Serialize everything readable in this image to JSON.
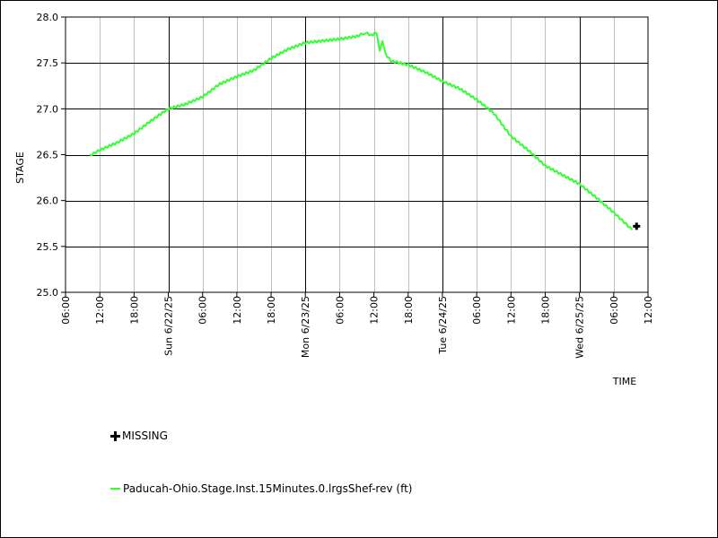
{
  "chart_data": {
    "type": "line",
    "title": "",
    "xlabel": "TIME",
    "ylabel": "STAGE",
    "ylim": [
      25.0,
      28.0
    ],
    "yticks": [
      25.0,
      25.5,
      26.0,
      26.5,
      27.0,
      27.5,
      28.0
    ],
    "ytick_labels": [
      "25.0",
      "25.5",
      "26.0",
      "26.5",
      "27.0",
      "27.5",
      "28.0"
    ],
    "xlim": [
      "2025-06-21 06:00",
      "2025-06-25 12:00"
    ],
    "xticks": [
      {
        "t": "2025-06-21 06:00",
        "label": "06:00",
        "major": false
      },
      {
        "t": "2025-06-21 12:00",
        "label": "12:00",
        "major": false
      },
      {
        "t": "2025-06-21 18:00",
        "label": "18:00",
        "major": false
      },
      {
        "t": "2025-06-22 00:00",
        "label": "Sun 6/22/25",
        "major": true
      },
      {
        "t": "2025-06-22 06:00",
        "label": "06:00",
        "major": false
      },
      {
        "t": "2025-06-22 12:00",
        "label": "12:00",
        "major": false
      },
      {
        "t": "2025-06-22 18:00",
        "label": "18:00",
        "major": false
      },
      {
        "t": "2025-06-23 00:00",
        "label": "Mon 6/23/25",
        "major": true
      },
      {
        "t": "2025-06-23 06:00",
        "label": "06:00",
        "major": false
      },
      {
        "t": "2025-06-23 12:00",
        "label": "12:00",
        "major": false
      },
      {
        "t": "2025-06-23 18:00",
        "label": "18:00",
        "major": false
      },
      {
        "t": "2025-06-24 00:00",
        "label": "Tue 6/24/25",
        "major": true
      },
      {
        "t": "2025-06-24 06:00",
        "label": "06:00",
        "major": false
      },
      {
        "t": "2025-06-24 12:00",
        "label": "12:00",
        "major": false
      },
      {
        "t": "2025-06-24 18:00",
        "label": "18:00",
        "major": false
      },
      {
        "t": "2025-06-25 00:00",
        "label": "Wed 6/25/25",
        "major": true
      },
      {
        "t": "2025-06-25 06:00",
        "label": "06:00",
        "major": false
      },
      {
        "t": "2025-06-25 12:00",
        "label": "12:00",
        "major": false
      }
    ],
    "grid": true,
    "series": [
      {
        "name": "Paducah-Ohio.Stage.Inst.15Minutes.0.lrgsShef-rev (ft)",
        "color": "#33ff33",
        "points": [
          {
            "t": "2025-06-21 10:15",
            "y": 26.49
          },
          {
            "t": "2025-06-21 12:00",
            "y": 26.55
          },
          {
            "t": "2025-06-21 15:00",
            "y": 26.63
          },
          {
            "t": "2025-06-21 18:00",
            "y": 26.73
          },
          {
            "t": "2025-06-21 21:00",
            "y": 26.87
          },
          {
            "t": "2025-06-22 00:00",
            "y": 27.0
          },
          {
            "t": "2025-06-22 03:00",
            "y": 27.05
          },
          {
            "t": "2025-06-22 06:00",
            "y": 27.13
          },
          {
            "t": "2025-06-22 09:00",
            "y": 27.27
          },
          {
            "t": "2025-06-22 12:00",
            "y": 27.35
          },
          {
            "t": "2025-06-22 15:00",
            "y": 27.42
          },
          {
            "t": "2025-06-22 18:00",
            "y": 27.55
          },
          {
            "t": "2025-06-22 21:00",
            "y": 27.65
          },
          {
            "t": "2025-06-23 00:00",
            "y": 27.72
          },
          {
            "t": "2025-06-23 03:00",
            "y": 27.74
          },
          {
            "t": "2025-06-23 06:00",
            "y": 27.76
          },
          {
            "t": "2025-06-23 09:00",
            "y": 27.79
          },
          {
            "t": "2025-06-23 10:30",
            "y": 27.83
          },
          {
            "t": "2025-06-23 11:30",
            "y": 27.8
          },
          {
            "t": "2025-06-23 12:30",
            "y": 27.83
          },
          {
            "t": "2025-06-23 13:00",
            "y": 27.62
          },
          {
            "t": "2025-06-23 13:30",
            "y": 27.75
          },
          {
            "t": "2025-06-23 14:00",
            "y": 27.6
          },
          {
            "t": "2025-06-23 15:00",
            "y": 27.52
          },
          {
            "t": "2025-06-23 18:00",
            "y": 27.48
          },
          {
            "t": "2025-06-23 21:00",
            "y": 27.4
          },
          {
            "t": "2025-06-24 00:00",
            "y": 27.3
          },
          {
            "t": "2025-06-24 03:00",
            "y": 27.22
          },
          {
            "t": "2025-06-24 06:00",
            "y": 27.1
          },
          {
            "t": "2025-06-24 09:00",
            "y": 26.95
          },
          {
            "t": "2025-06-24 12:00",
            "y": 26.7
          },
          {
            "t": "2025-06-24 15:00",
            "y": 26.55
          },
          {
            "t": "2025-06-24 18:00",
            "y": 26.38
          },
          {
            "t": "2025-06-24 21:00",
            "y": 26.28
          },
          {
            "t": "2025-06-25 00:00",
            "y": 26.18
          },
          {
            "t": "2025-06-25 03:00",
            "y": 26.03
          },
          {
            "t": "2025-06-25 06:00",
            "y": 25.87
          },
          {
            "t": "2025-06-25 09:15",
            "y": 25.68
          }
        ]
      }
    ],
    "missing": {
      "name": "MISSING",
      "points": [
        {
          "t": "2025-06-25 10:00",
          "y": 25.72
        }
      ]
    }
  }
}
